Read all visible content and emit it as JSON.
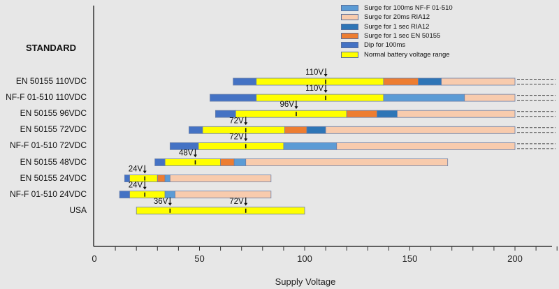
{
  "chart_data": {
    "type": "range-bar",
    "title": "",
    "ylabel_heading": "STANDARD",
    "xlabel": "Supply Voltage",
    "xlim": [
      0,
      200
    ],
    "x_ticks": [
      0,
      50,
      100,
      150,
      200
    ],
    "x_minor_tick_step": 10,
    "grid": false,
    "legend_position": "top-right",
    "legend": [
      {
        "key": "surge100ms",
        "label": "Surge for 100ms NF-F 01-510",
        "color": "#5B9BD5"
      },
      {
        "key": "surge20ms",
        "label": "Surge for 20ms RIA12",
        "color": "#F8CBAD"
      },
      {
        "key": "surge1sRIA",
        "label": "Surge for 1 sec RIA12",
        "color": "#2E75B6"
      },
      {
        "key": "surge1sEN",
        "label": "Surge for 1 sec EN 50155",
        "color": "#ED7D31"
      },
      {
        "key": "dip",
        "label": "Dip for 100ms",
        "color": "#4472C4"
      },
      {
        "key": "normal",
        "label": "Normal battery voltage range",
        "color": "#FFFF00"
      }
    ],
    "rows": [
      {
        "label": "EN 50155 110VDC",
        "continues": true,
        "markers": [
          {
            "value": 110,
            "label": "110V"
          }
        ],
        "segments": [
          {
            "type": "dip",
            "from": 66,
            "to": 77
          },
          {
            "type": "normal",
            "from": 77,
            "to": 137.5
          },
          {
            "type": "surge1sEN",
            "from": 137.5,
            "to": 154
          },
          {
            "type": "surge1sRIA",
            "from": 154,
            "to": 165
          },
          {
            "type": "surge20ms",
            "from": 165,
            "to": 200
          }
        ]
      },
      {
        "label": "NF-F 01-510 110VDC",
        "continues": true,
        "markers": [
          {
            "value": 110,
            "label": "110V"
          }
        ],
        "segments": [
          {
            "type": "dip",
            "from": 55,
            "to": 77
          },
          {
            "type": "normal",
            "from": 77,
            "to": 137.5
          },
          {
            "type": "surge100ms",
            "from": 137.5,
            "to": 176
          },
          {
            "type": "surge20ms",
            "from": 176,
            "to": 200
          }
        ]
      },
      {
        "label": "EN 50155 96VDC",
        "continues": true,
        "markers": [
          {
            "value": 96,
            "label": "96V"
          }
        ],
        "segments": [
          {
            "type": "dip",
            "from": 57.6,
            "to": 67.2
          },
          {
            "type": "normal",
            "from": 67.2,
            "to": 120
          },
          {
            "type": "surge1sEN",
            "from": 120,
            "to": 134.4
          },
          {
            "type": "surge1sRIA",
            "from": 134.4,
            "to": 144
          },
          {
            "type": "surge20ms",
            "from": 144,
            "to": 200
          }
        ]
      },
      {
        "label": "EN 50155 72VDC",
        "continues": true,
        "markers": [
          {
            "value": 72,
            "label": "72V"
          }
        ],
        "segments": [
          {
            "type": "dip",
            "from": 45,
            "to": 51.5
          },
          {
            "type": "normal",
            "from": 51.5,
            "to": 90.5
          },
          {
            "type": "surge1sEN",
            "from": 90.5,
            "to": 101
          },
          {
            "type": "surge1sRIA",
            "from": 101,
            "to": 110
          },
          {
            "type": "surge20ms",
            "from": 110,
            "to": 200
          }
        ]
      },
      {
        "label": "NF-F 01-510 72VDC",
        "continues": true,
        "markers": [
          {
            "value": 72,
            "label": "72V"
          }
        ],
        "segments": [
          {
            "type": "dip",
            "from": 36,
            "to": 49.5
          },
          {
            "type": "normal",
            "from": 49.5,
            "to": 90
          },
          {
            "type": "surge100ms",
            "from": 90,
            "to": 115.2
          },
          {
            "type": "surge20ms",
            "from": 115.2,
            "to": 200
          }
        ]
      },
      {
        "label": "EN 50155 48VDC",
        "continues": false,
        "markers": [
          {
            "value": 48,
            "label": "48V"
          }
        ],
        "segments": [
          {
            "type": "dip",
            "from": 28.8,
            "to": 33.6
          },
          {
            "type": "normal",
            "from": 33.6,
            "to": 60
          },
          {
            "type": "surge1sEN",
            "from": 60,
            "to": 66.5
          },
          {
            "type": "surge100ms",
            "from": 66.5,
            "to": 72
          },
          {
            "type": "surge20ms",
            "from": 72,
            "to": 168
          }
        ]
      },
      {
        "label": "EN 50155 24VDC",
        "continues": false,
        "markers": [
          {
            "value": 24,
            "label": "24V"
          }
        ],
        "segments": [
          {
            "type": "dip",
            "from": 14.4,
            "to": 16.8
          },
          {
            "type": "normal",
            "from": 16.8,
            "to": 30
          },
          {
            "type": "surge1sEN",
            "from": 30,
            "to": 33.6
          },
          {
            "type": "surge100ms",
            "from": 33.6,
            "to": 36
          },
          {
            "type": "surge20ms",
            "from": 36,
            "to": 84
          }
        ]
      },
      {
        "label": "NF-F 01-510 24VDC",
        "continues": false,
        "markers": [
          {
            "value": 24,
            "label": "24V"
          }
        ],
        "segments": [
          {
            "type": "dip",
            "from": 12,
            "to": 16.8
          },
          {
            "type": "normal",
            "from": 16.8,
            "to": 33.6
          },
          {
            "type": "surge100ms",
            "from": 33.6,
            "to": 38.4
          },
          {
            "type": "surge20ms",
            "from": 38.4,
            "to": 84
          }
        ]
      },
      {
        "label": "USA",
        "continues": false,
        "markers": [
          {
            "value": 36,
            "label": "36V"
          },
          {
            "value": 72,
            "label": "72V"
          }
        ],
        "segments": [
          {
            "type": "normal",
            "from": 20,
            "to": 100
          }
        ]
      }
    ]
  }
}
